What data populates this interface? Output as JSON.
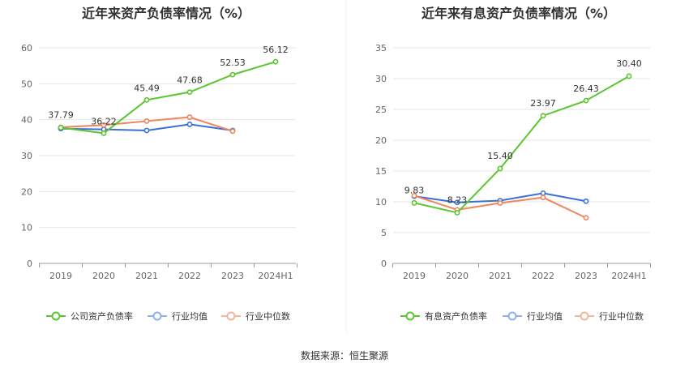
{
  "colors": {
    "green": "#5ac62e",
    "blue": "#3a6fd8",
    "orange": "#f0845c",
    "blue_legend": "#8fb0ee",
    "orange_legend": "#f5b49c",
    "grid": "#e6e6e6",
    "axis": "#999999"
  },
  "chart_data": [
    {
      "type": "line",
      "title": "近年来资产负债率情况（%）",
      "categories": [
        "2019",
        "2020",
        "2021",
        "2022",
        "2023",
        "2024H1"
      ],
      "ylim": [
        0,
        60
      ],
      "yticks": [
        0,
        10,
        20,
        30,
        40,
        50,
        60
      ],
      "series": [
        {
          "name": "公司资产负债率",
          "color": "green",
          "values": [
            37.79,
            36.22,
            45.49,
            47.68,
            52.53,
            56.12
          ],
          "labels": [
            "37.79",
            "36.22",
            "45.49",
            "47.68",
            "52.53",
            "56.12"
          ]
        },
        {
          "name": "行业均值",
          "color": "blue",
          "values": [
            37.5,
            37.3,
            37.0,
            38.7,
            37.0,
            null
          ]
        },
        {
          "name": "行业中位数",
          "color": "orange",
          "values": [
            37.9,
            38.5,
            39.6,
            40.7,
            36.8,
            null
          ]
        }
      ],
      "legend": [
        "公司资产负债率",
        "行业均值",
        "行业中位数"
      ]
    },
    {
      "type": "line",
      "title": "近年来有息资产负债率情况（%）",
      "categories": [
        "2019",
        "2020",
        "2021",
        "2022",
        "2023",
        "2024H1"
      ],
      "ylim": [
        0,
        35
      ],
      "yticks": [
        0,
        5,
        10,
        15,
        20,
        25,
        30,
        35
      ],
      "series": [
        {
          "name": "有息资产负债率",
          "color": "green",
          "values": [
            9.83,
            8.23,
            15.4,
            23.97,
            26.43,
            30.4
          ],
          "labels": [
            "9.83",
            "8.23",
            "15.40",
            "23.97",
            "26.43",
            "30.40"
          ]
        },
        {
          "name": "行业均值",
          "color": "blue",
          "values": [
            10.9,
            9.9,
            10.2,
            11.4,
            10.1,
            null
          ]
        },
        {
          "name": "行业中位数",
          "color": "orange",
          "values": [
            11.0,
            8.7,
            9.8,
            10.7,
            7.4,
            null
          ]
        }
      ],
      "legend": [
        "有息资产负债率",
        "行业均值",
        "行业中位数"
      ]
    }
  ],
  "footer": {
    "source": "数据来源：恒生聚源"
  }
}
